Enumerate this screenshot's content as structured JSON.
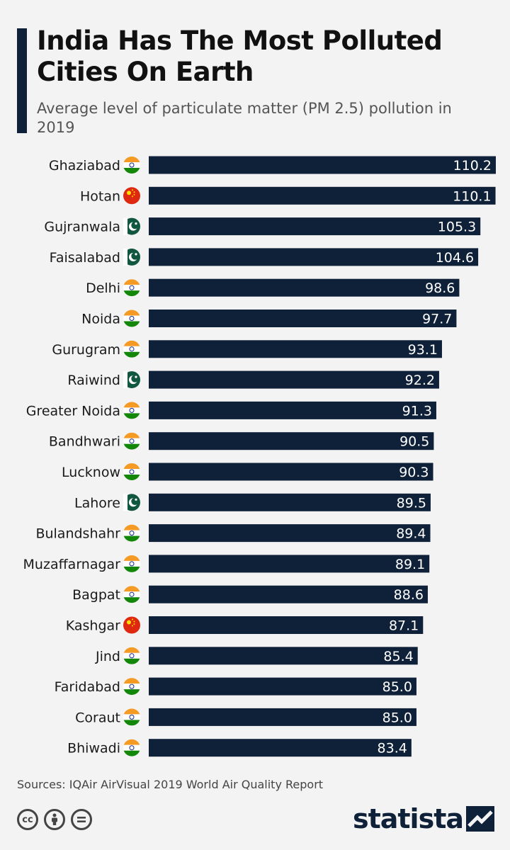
{
  "title": "India Has The Most Polluted Cities On Earth",
  "subtitle": "Average level of particulate matter (PM 2.5) pollution in 2019",
  "source": "Sources: IQAir AirVisual 2019 World Air Quality Report",
  "brand": "statista",
  "colors": {
    "bar": "#0f2039",
    "background": "#f3f3f3",
    "india_saffron": "#f59a23",
    "india_green": "#138808",
    "india_chakra": "#0b2a8a",
    "china_red": "#de2910",
    "china_star": "#ffde00",
    "pakistan_green": "#115740"
  },
  "footer_icons": [
    "creative-commons-icon",
    "attribution-icon",
    "no-derivatives-icon"
  ],
  "chart_data": {
    "type": "bar",
    "orientation": "horizontal",
    "title": "India Has The Most Polluted Cities On Earth",
    "subtitle": "Average level of particulate matter (PM 2.5) pollution in 2019",
    "categories": [
      "Ghaziabad",
      "Hotan",
      "Gujranwala",
      "Faisalabad",
      "Delhi",
      "Noida",
      "Gurugram",
      "Raiwind",
      "Greater Noida",
      "Bandhwari",
      "Lucknow",
      "Lahore",
      "Bulandshahr",
      "Muzaffarnagar",
      "Bagpat",
      "Kashgar",
      "Jind",
      "Faridabad",
      "Coraut",
      "Bhiwadi"
    ],
    "countries": [
      "india",
      "china",
      "pakistan",
      "pakistan",
      "india",
      "india",
      "india",
      "pakistan",
      "india",
      "india",
      "india",
      "pakistan",
      "india",
      "india",
      "india",
      "china",
      "india",
      "india",
      "india",
      "india"
    ],
    "values": [
      110.2,
      110.1,
      105.3,
      104.6,
      98.6,
      97.7,
      93.1,
      92.2,
      91.3,
      90.5,
      90.3,
      89.5,
      89.4,
      89.1,
      88.6,
      87.1,
      85.4,
      85.0,
      85.0,
      83.4
    ],
    "value_labels": [
      "110.2",
      "110.1",
      "105.3",
      "104.6",
      "98.6",
      "97.7",
      "93.1",
      "92.2",
      "91.3",
      "90.5",
      "90.3",
      "89.5",
      "89.4",
      "89.1",
      "88.6",
      "87.1",
      "85.4",
      "85.0",
      "85.0",
      "83.4"
    ],
    "xlim": [
      0,
      110.2
    ],
    "xlabel": "",
    "ylabel": "",
    "grid": false,
    "legend": "none",
    "data_labels": "inside-end"
  }
}
